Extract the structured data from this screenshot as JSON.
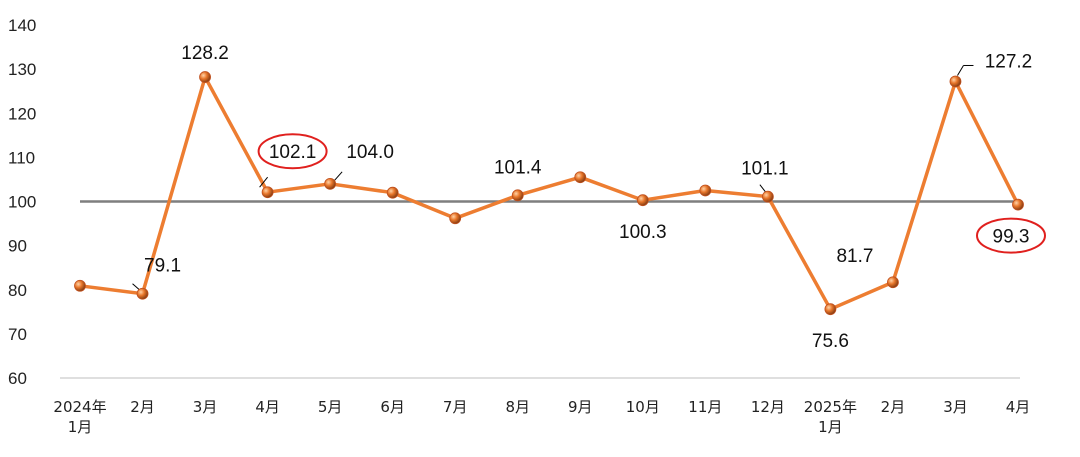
{
  "chart_data": {
    "type": "line",
    "title": "",
    "xlabel": "",
    "ylabel": "",
    "ylim": [
      60,
      140
    ],
    "yticks": [
      60,
      70,
      80,
      90,
      100,
      110,
      120,
      130,
      140
    ],
    "reference_line": 100,
    "categories": [
      [
        "2024年",
        "1月"
      ],
      [
        "2月"
      ],
      [
        "3月"
      ],
      [
        "4月"
      ],
      [
        "5月"
      ],
      [
        "6月"
      ],
      [
        "7月"
      ],
      [
        "8月"
      ],
      [
        "9月"
      ],
      [
        "10月"
      ],
      [
        "11月"
      ],
      [
        "12月"
      ],
      [
        "2025年",
        "1月"
      ],
      [
        "2月"
      ],
      [
        "3月"
      ],
      [
        "4月"
      ]
    ],
    "series": [
      {
        "name": "",
        "values": [
          80.9,
          79.1,
          128.2,
          102.1,
          104.0,
          102.0,
          96.2,
          101.4,
          105.5,
          100.3,
          102.5,
          101.1,
          75.6,
          81.7,
          127.2,
          99.3
        ]
      }
    ],
    "data_labels": [
      {
        "index": 1,
        "text": "79.1"
      },
      {
        "index": 2,
        "text": "128.2"
      },
      {
        "index": 3,
        "text": "102.1",
        "highlight": true
      },
      {
        "index": 4,
        "text": "104.0"
      },
      {
        "index": 7,
        "text": "101.4"
      },
      {
        "index": 9,
        "text": "100.3"
      },
      {
        "index": 11,
        "text": "101.1"
      },
      {
        "index": 12,
        "text": "75.6"
      },
      {
        "index": 13,
        "text": "81.7"
      },
      {
        "index": 14,
        "text": "127.2"
      },
      {
        "index": 15,
        "text": "99.3",
        "highlight": true
      }
    ],
    "colors": {
      "line": "#ED7D31",
      "marker": "#C0501E",
      "reference": "#7F7F7F",
      "highlight": "#E0201E",
      "axis": "#BFBFBF"
    }
  }
}
